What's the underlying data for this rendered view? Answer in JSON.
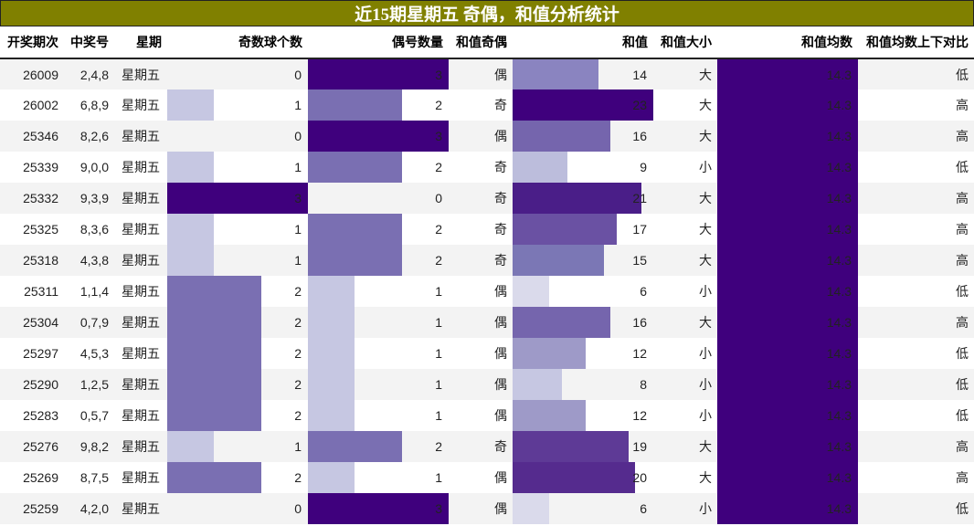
{
  "title": "近15期星期五 奇偶，和值分析统计",
  "headers": [
    "开奖期次",
    "中奖号",
    "星期",
    "奇数球个数",
    "偶号数量",
    "和值奇偶",
    "和值",
    "和值大小",
    "和值均数",
    "和值均数上下对比"
  ],
  "bar_max": {
    "odd_count": 3,
    "even_count": 3,
    "sum": 23,
    "avg": 14.3
  },
  "rows": [
    {
      "issue": "26009",
      "numbers": "2,4,8",
      "weekday": "星期五",
      "odd_count": "0",
      "even_count": "3",
      "sum_parity": "偶",
      "sum": "14",
      "size": "大",
      "avg": "14.3",
      "compare": "低"
    },
    {
      "issue": "26002",
      "numbers": "6,8,9",
      "weekday": "星期五",
      "odd_count": "1",
      "even_count": "2",
      "sum_parity": "奇",
      "sum": "23",
      "size": "大",
      "avg": "14.3",
      "compare": "高"
    },
    {
      "issue": "25346",
      "numbers": "8,2,6",
      "weekday": "星期五",
      "odd_count": "0",
      "even_count": "3",
      "sum_parity": "偶",
      "sum": "16",
      "size": "大",
      "avg": "14.3",
      "compare": "高"
    },
    {
      "issue": "25339",
      "numbers": "9,0,0",
      "weekday": "星期五",
      "odd_count": "1",
      "even_count": "2",
      "sum_parity": "奇",
      "sum": "9",
      "size": "小",
      "avg": "14.3",
      "compare": "低"
    },
    {
      "issue": "25332",
      "numbers": "9,3,9",
      "weekday": "星期五",
      "odd_count": "3",
      "even_count": "0",
      "sum_parity": "奇",
      "sum": "21",
      "size": "大",
      "avg": "14.3",
      "compare": "高"
    },
    {
      "issue": "25325",
      "numbers": "8,3,6",
      "weekday": "星期五",
      "odd_count": "1",
      "even_count": "2",
      "sum_parity": "奇",
      "sum": "17",
      "size": "大",
      "avg": "14.3",
      "compare": "高"
    },
    {
      "issue": "25318",
      "numbers": "4,3,8",
      "weekday": "星期五",
      "odd_count": "1",
      "even_count": "2",
      "sum_parity": "奇",
      "sum": "15",
      "size": "大",
      "avg": "14.3",
      "compare": "高"
    },
    {
      "issue": "25311",
      "numbers": "1,1,4",
      "weekday": "星期五",
      "odd_count": "2",
      "even_count": "1",
      "sum_parity": "偶",
      "sum": "6",
      "size": "小",
      "avg": "14.3",
      "compare": "低"
    },
    {
      "issue": "25304",
      "numbers": "0,7,9",
      "weekday": "星期五",
      "odd_count": "2",
      "even_count": "1",
      "sum_parity": "偶",
      "sum": "16",
      "size": "大",
      "avg": "14.3",
      "compare": "高"
    },
    {
      "issue": "25297",
      "numbers": "4,5,3",
      "weekday": "星期五",
      "odd_count": "2",
      "even_count": "1",
      "sum_parity": "偶",
      "sum": "12",
      "size": "小",
      "avg": "14.3",
      "compare": "低"
    },
    {
      "issue": "25290",
      "numbers": "1,2,5",
      "weekday": "星期五",
      "odd_count": "2",
      "even_count": "1",
      "sum_parity": "偶",
      "sum": "8",
      "size": "小",
      "avg": "14.3",
      "compare": "低"
    },
    {
      "issue": "25283",
      "numbers": "0,5,7",
      "weekday": "星期五",
      "odd_count": "2",
      "even_count": "1",
      "sum_parity": "偶",
      "sum": "12",
      "size": "小",
      "avg": "14.3",
      "compare": "低"
    },
    {
      "issue": "25276",
      "numbers": "9,8,2",
      "weekday": "星期五",
      "odd_count": "1",
      "even_count": "2",
      "sum_parity": "奇",
      "sum": "19",
      "size": "大",
      "avg": "14.3",
      "compare": "高"
    },
    {
      "issue": "25269",
      "numbers": "8,7,5",
      "weekday": "星期五",
      "odd_count": "2",
      "even_count": "1",
      "sum_parity": "偶",
      "sum": "20",
      "size": "大",
      "avg": "14.3",
      "compare": "高"
    },
    {
      "issue": "25259",
      "numbers": "4,2,0",
      "weekday": "星期五",
      "odd_count": "0",
      "even_count": "3",
      "sum_parity": "偶",
      "sum": "6",
      "size": "小",
      "avg": "14.3",
      "compare": "低"
    }
  ],
  "colors": {
    "title_bg": "#808000",
    "count_1": "#c6c7e2",
    "count_2": "#7a6fb2",
    "count_3": "#3f007d",
    "avg_bar": "#3f007d"
  },
  "sum_colors": {
    "6": "#dadaeb",
    "8": "#c6c7e2",
    "9": "#bcbddc",
    "12": "#9e9ac8",
    "14": "#8a84c0",
    "15": "#7b77b5",
    "16": "#7565ad",
    "17": "#6a51a3",
    "19": "#5e3a96",
    "20": "#552b8e",
    "21": "#4a1e88",
    "23": "#3f007d"
  }
}
